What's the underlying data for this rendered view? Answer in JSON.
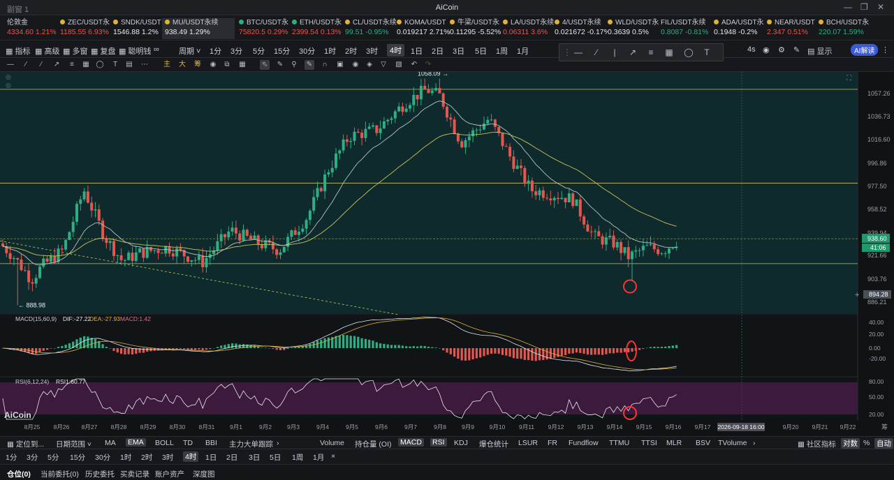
{
  "window": {
    "title": "AiCoin",
    "left_label": "副窗 1"
  },
  "tickers": [
    {
      "name": "伦敦金",
      "price": "4334.60",
      "change": "1.21%",
      "color": "red",
      "dot": ""
    },
    {
      "name": "ZEC/USDT永",
      "price": "1185.55",
      "change": "6.93%",
      "color": "red",
      "dot": "#e0b23a"
    },
    {
      "name": "SNDK/USDT",
      "price": "1546.88",
      "change": "1.2%",
      "color": "wht",
      "dot": "#e0b23a"
    },
    {
      "name": "MU/USDT永续",
      "price": "938.49",
      "change": "1.29%",
      "color": "wht",
      "dot": "#e0b23a"
    },
    {
      "name": "BTC/USDT永",
      "price": "75820.5",
      "change": "0.29%",
      "color": "red",
      "dot": "#2fae84"
    },
    {
      "name": "ETH/USDT永",
      "price": "2399.54",
      "change": "0.13%",
      "color": "red",
      "dot": "#2fae84"
    },
    {
      "name": "CL/USDT永续",
      "price": "99.51",
      "change": "-0.95%",
      "color": "grn",
      "dot": "#e0b23a"
    },
    {
      "name": "KOMA/USDT",
      "price": "0.019217",
      "change": "2.71%",
      "color": "wht",
      "dot": "#e0b23a"
    },
    {
      "name": "牛梁/USDT永",
      "price": "0.11295",
      "change": "-5.52%",
      "color": "wht",
      "dot": "#e0b23a"
    },
    {
      "name": "LA/USDT永续",
      "price": "0.06311",
      "change": "3.6%",
      "color": "red",
      "dot": "#e0b23a"
    },
    {
      "name": "4/USDT永续",
      "price": "0.021672",
      "change": "-0.17%",
      "color": "wht",
      "dot": "#e0b23a"
    },
    {
      "name": "WLD/USDT永",
      "price": "0.3639",
      "change": "0.5%",
      "color": "wht",
      "dot": "#e0b23a"
    },
    {
      "name": "FIL/USDT永续",
      "price": "0.8087",
      "change": "-0.81%",
      "color": "grn",
      "dot": ""
    },
    {
      "name": "ADA/USDT永",
      "price": "0.1948",
      "change": "-0.2%",
      "color": "wht",
      "dot": "#e0b23a"
    },
    {
      "name": "NEAR/USDT",
      "price": "2.347",
      "change": "0.51%",
      "color": "red",
      "dot": "#e0b23a"
    },
    {
      "name": "BCH/USDT永",
      "price": "220.07",
      "change": "1.59%",
      "color": "grn",
      "dot": "#e0b23a"
    }
  ],
  "toolbar1": {
    "indicators": "指标",
    "advanced": "高级",
    "multi": "多窗",
    "replay": "复盘",
    "smart": "聪明钱",
    "period": "周期",
    "intervals": [
      "1分",
      "3分",
      "5分",
      "15分",
      "30分",
      "1时",
      "2时",
      "3时",
      "4时",
      "1日",
      "2日",
      "3日",
      "5日",
      "1周",
      "1月"
    ],
    "active": "4时",
    "right": [
      "4s",
      "显示",
      "AI解读"
    ]
  },
  "toolbar2": {
    "chars": [
      "主",
      "大",
      "筹"
    ]
  },
  "chart": {
    "high_label": "1058.09",
    "low_label": "888.98",
    "current_price": "938.60",
    "countdown": "41:06",
    "crosshair_price": "894.28",
    "price_ticks": [
      "1057.26",
      "1036.73",
      "1016.60",
      "996.86",
      "977.50",
      "958.52",
      "939.94",
      "921.66",
      "903.76",
      "886.21"
    ],
    "macd": {
      "label": "MACD(15,60,9)",
      "dif": "DIF:-27.22",
      "dea": "DEA:-27.93",
      "macd": "MACD:1.42",
      "ticks": [
        "40.00",
        "20.00",
        "0.00",
        "-20.00"
      ]
    },
    "rsi": {
      "label": "RSI(6,12,24)",
      "value": "RSI1:60.77",
      "ticks": [
        "80.00",
        "50.00",
        "20.00"
      ]
    },
    "dates": [
      "8月25",
      "8月26",
      "8月27",
      "8月28",
      "8月29",
      "8月30",
      "8月31",
      "9月1",
      "9月2",
      "9月3",
      "9月4",
      "9月5",
      "9月6",
      "9月7",
      "9月8",
      "9月9",
      "9月10",
      "9月11",
      "9月12",
      "9月13",
      "9月14",
      "9月15",
      "9月16",
      "9月17",
      "9月20",
      "9月21",
      "9月22"
    ],
    "crosshair_date": "2026-09-18 16:00",
    "watermark": "AiCoin",
    "corner": "筹"
  },
  "bottom1": {
    "locate": "定位到...",
    "range": "日期范围",
    "left": [
      "MA",
      "EMA",
      "BOLL",
      "TD",
      "BBI",
      "主力大单跟踪"
    ],
    "left_active": "EMA",
    "right": [
      "Volume",
      "持仓量 (OI)",
      "MACD",
      "RSI",
      "KDJ",
      "爆仓统计",
      "LSUR",
      "FR",
      "Fundflow",
      "TTMU",
      "TTSI",
      "MLR",
      "BSV",
      "TVolume"
    ],
    "right_active": [
      "MACD",
      "RSI"
    ],
    "community": "社区指标",
    "pair": "对数",
    "percent": "%",
    "auto": "自动"
  },
  "bottom2": {
    "intervals": [
      "1分",
      "3分",
      "5分",
      "15分",
      "30分",
      "1时",
      "2时",
      "3时",
      "4时",
      "1日",
      "2日",
      "3日",
      "5日",
      "1周",
      "1月"
    ],
    "active": "4时",
    "close": "×"
  },
  "bottom3": {
    "tabs": [
      "仓位(0)",
      "当前委托(0)",
      "历史委托",
      "买卖记录",
      "账户资产",
      "深度图"
    ]
  },
  "colors": {
    "up": "#2fae84",
    "down": "#e4574f",
    "bg": "#0f2a2c",
    "ema_fast": "#b8c2c0",
    "ema_slow": "#c8c65a"
  }
}
